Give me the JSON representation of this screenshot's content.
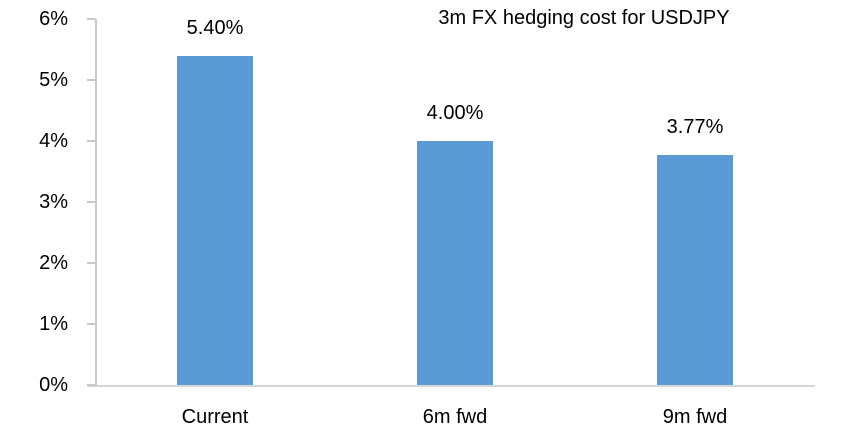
{
  "chart_data": {
    "type": "bar",
    "title": "3m FX hedging cost for USDJPY",
    "categories": [
      "Current",
      "6m fwd",
      "9m fwd"
    ],
    "values": [
      5.4,
      4.0,
      3.77
    ],
    "value_labels": [
      "5.40%",
      "4.00%",
      "3.77%"
    ],
    "xlabel": "",
    "ylabel": "",
    "ylim": [
      0,
      6
    ],
    "ytick_labels": [
      "0%",
      "1%",
      "2%",
      "3%",
      "4%",
      "5%",
      "6%"
    ],
    "grid": false,
    "legend_position": "none",
    "colors": {
      "bar": "#5B9BD5",
      "axis_line": "#C8C8C8",
      "baseline": "#D6D6D6",
      "text": "#000000",
      "background": "#FFFFFF"
    }
  }
}
